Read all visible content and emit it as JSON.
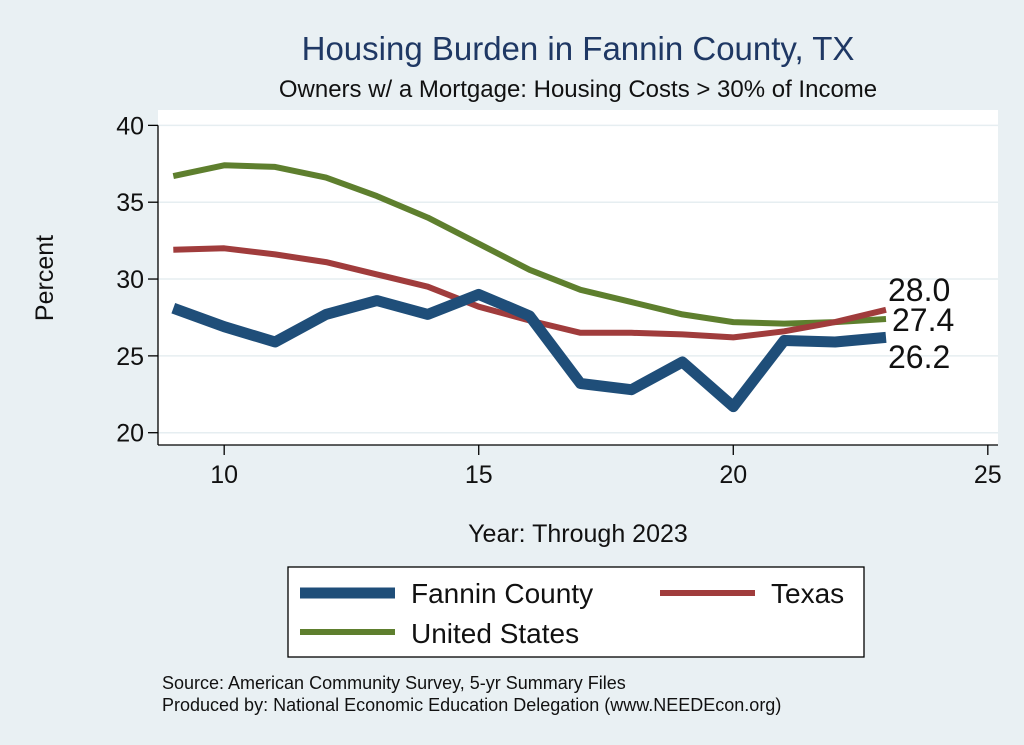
{
  "colors": {
    "page_background": "#e9f0f3",
    "plot_background": "#ffffff",
    "gridline": "#e6eef1",
    "axis": "#000000"
  },
  "chart_data": {
    "type": "line",
    "title": "Housing Burden in Fannin County, TX",
    "subtitle": "Owners w/ a Mortgage: Housing Costs > 30% of Income",
    "xlabel": "Year: Through 2023",
    "ylabel": "Percent",
    "xlim": [
      8.7,
      25.2
    ],
    "ylim": [
      19.2,
      41
    ],
    "xticks": [
      10,
      15,
      20,
      25
    ],
    "yticks": [
      20,
      25,
      30,
      35,
      40
    ],
    "grid": true,
    "legend_position": "bottom",
    "series": [
      {
        "name": "Fannin County",
        "color": "#1f4e79",
        "stroke": "thick",
        "x": [
          9,
          10,
          11,
          12,
          13,
          14,
          15,
          16,
          17,
          18,
          19,
          20,
          21,
          22,
          23
        ],
        "values": [
          28.1,
          26.9,
          25.9,
          27.7,
          28.6,
          27.7,
          29.0,
          27.6,
          23.2,
          22.8,
          24.6,
          21.7,
          26.0,
          25.9,
          26.2
        ]
      },
      {
        "name": "Texas",
        "color": "#a03c3c",
        "stroke": "medium",
        "x": [
          9,
          10,
          11,
          12,
          13,
          14,
          15,
          16,
          17,
          18,
          19,
          20,
          21,
          22,
          23
        ],
        "values": [
          31.9,
          32.0,
          31.6,
          31.1,
          30.3,
          29.5,
          28.2,
          27.3,
          26.5,
          26.5,
          26.4,
          26.2,
          26.6,
          27.2,
          28.0
        ]
      },
      {
        "name": "United States",
        "color": "#5e7f2e",
        "stroke": "medium",
        "x": [
          9,
          10,
          11,
          12,
          13,
          14,
          15,
          16,
          17,
          18,
          19,
          20,
          21,
          22,
          23
        ],
        "values": [
          36.7,
          37.4,
          37.3,
          36.6,
          35.4,
          34.0,
          32.3,
          30.6,
          29.3,
          28.5,
          27.7,
          27.2,
          27.1,
          27.2,
          27.4
        ]
      }
    ],
    "end_labels": [
      "28.0",
      "27.4",
      "26.2"
    ],
    "source": "Source: American Community Survey, 5-yr Summary Files",
    "produced_by": "Produced by: National Economic Education Delegation (www.NEEDEcon.org)"
  }
}
